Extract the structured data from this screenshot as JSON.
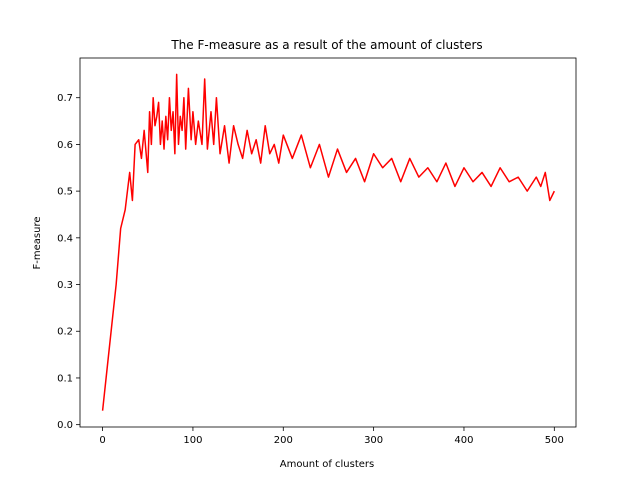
{
  "chart_data": {
    "type": "line",
    "title": "The F-measure as a result of the amount of clusters",
    "xlabel": "Amount of clusters",
    "ylabel": "F-measure",
    "xlim": [
      -25,
      524
    ],
    "ylim": [
      -0.005,
      0.785
    ],
    "xticks": [
      0,
      100,
      200,
      300,
      400,
      500
    ],
    "yticks": [
      0.0,
      0.1,
      0.2,
      0.3,
      0.4,
      0.5,
      0.6,
      0.7
    ],
    "grid": false,
    "series": [
      {
        "name": "F-measure",
        "color": "#ff0000",
        "x": [
          0,
          5,
          10,
          15,
          20,
          25,
          30,
          33,
          36,
          40,
          43,
          46,
          50,
          52,
          54,
          56,
          58,
          60,
          62,
          64,
          66,
          68,
          70,
          72,
          74,
          76,
          78,
          80,
          82,
          84,
          86,
          88,
          90,
          92,
          95,
          98,
          100,
          103,
          106,
          110,
          113,
          116,
          120,
          123,
          126,
          130,
          135,
          140,
          145,
          150,
          155,
          160,
          165,
          170,
          175,
          180,
          185,
          190,
          195,
          200,
          210,
          220,
          230,
          240,
          250,
          260,
          270,
          280,
          290,
          300,
          310,
          320,
          330,
          340,
          350,
          360,
          370,
          380,
          390,
          400,
          410,
          420,
          430,
          440,
          450,
          460,
          470,
          480,
          485,
          490,
          495,
          500
        ],
        "y": [
          0.03,
          0.12,
          0.21,
          0.3,
          0.42,
          0.46,
          0.54,
          0.48,
          0.6,
          0.61,
          0.57,
          0.63,
          0.54,
          0.67,
          0.6,
          0.7,
          0.64,
          0.66,
          0.69,
          0.6,
          0.65,
          0.59,
          0.66,
          0.61,
          0.7,
          0.63,
          0.67,
          0.58,
          0.75,
          0.6,
          0.66,
          0.63,
          0.7,
          0.59,
          0.72,
          0.61,
          0.67,
          0.6,
          0.65,
          0.6,
          0.74,
          0.59,
          0.67,
          0.6,
          0.7,
          0.58,
          0.64,
          0.56,
          0.64,
          0.6,
          0.57,
          0.63,
          0.58,
          0.61,
          0.56,
          0.64,
          0.58,
          0.6,
          0.56,
          0.62,
          0.57,
          0.62,
          0.55,
          0.6,
          0.53,
          0.59,
          0.54,
          0.57,
          0.52,
          0.58,
          0.55,
          0.57,
          0.52,
          0.57,
          0.53,
          0.55,
          0.52,
          0.56,
          0.51,
          0.55,
          0.52,
          0.54,
          0.51,
          0.55,
          0.52,
          0.53,
          0.5,
          0.53,
          0.51,
          0.54,
          0.48,
          0.5
        ]
      }
    ]
  }
}
